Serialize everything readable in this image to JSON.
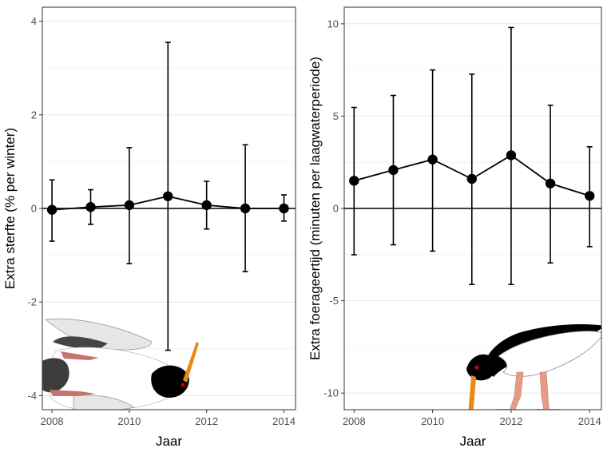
{
  "chart_data": [
    {
      "type": "line",
      "error_bars": true,
      "title": "",
      "xlabel": "Jaar",
      "ylabel": "Extra sterfte (% per winter)",
      "xlim": [
        2007.75,
        2014.3
      ],
      "ylim": [
        -4.3,
        4.3
      ],
      "x_ticks": [
        2008,
        2010,
        2012,
        2014
      ],
      "y_ticks": [
        -4,
        -2,
        0,
        2,
        4
      ],
      "y_tick_labels": [
        "-4",
        "-2",
        "0",
        "2",
        "4"
      ],
      "zero_line": true,
      "grid": true,
      "legend": "none",
      "x": [
        2008,
        2009,
        2010,
        2011,
        2012,
        2013,
        2014
      ],
      "y": [
        -0.03,
        0.03,
        0.07,
        0.26,
        0.07,
        0.0,
        0.0
      ],
      "y_lower": [
        -0.7,
        -0.34,
        -1.18,
        -3.03,
        -0.44,
        -1.35,
        -0.27
      ],
      "y_upper": [
        0.61,
        0.4,
        1.3,
        3.55,
        0.58,
        1.36,
        0.29
      ],
      "illustration": "dead-oystercatcher-icon",
      "illustration_colors": {
        "body": "#000000",
        "wing": "#e6e6e6",
        "bill": "#e8891a",
        "legs": "#c7736e"
      }
    },
    {
      "type": "line",
      "error_bars": true,
      "title": "",
      "xlabel": "Jaar",
      "ylabel": "Extra foerageertijd (minuten per laagwaterperiode)",
      "xlim": [
        2007.75,
        2014.3
      ],
      "ylim": [
        -10.9,
        10.9
      ],
      "x_ticks": [
        2008,
        2010,
        2012,
        2014
      ],
      "y_ticks": [
        -10,
        -5,
        0,
        5,
        10
      ],
      "y_tick_labels": [
        "-10",
        "-5",
        "0",
        "5",
        "10"
      ],
      "zero_line": true,
      "grid": true,
      "legend": "none",
      "x": [
        2008,
        2009,
        2010,
        2011,
        2012,
        2013,
        2014
      ],
      "y": [
        1.5,
        2.08,
        2.65,
        1.6,
        2.88,
        1.35,
        0.68
      ],
      "y_lower": [
        -2.51,
        -1.97,
        -2.31,
        -4.12,
        -4.12,
        -2.95,
        -2.07
      ],
      "y_upper": [
        5.47,
        6.12,
        7.5,
        7.27,
        9.8,
        5.59,
        3.34
      ],
      "illustration": "foraging-oystercatcher-icon",
      "illustration_colors": {
        "body": "#000000",
        "belly": "#ffffff",
        "bill": "#e8891a",
        "legs": "#e89a85",
        "eye": "#cc0000"
      }
    }
  ]
}
